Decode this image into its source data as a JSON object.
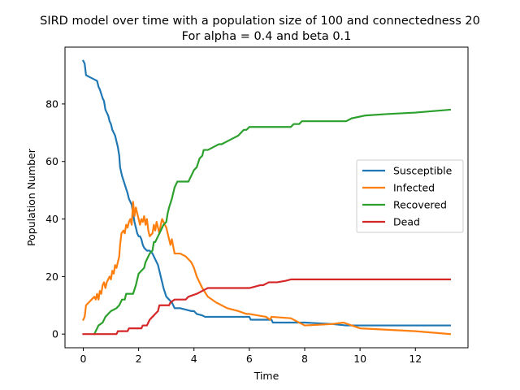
{
  "chart_data": {
    "type": "line",
    "suptitle": "SIRD model over time with a population size of 100 and connectedness 20",
    "title": "For alpha = 0.4 and beta 0.1",
    "xlabel": "Time",
    "ylabel": "Population Number",
    "xlim": [
      -0.66,
      13.9
    ],
    "ylim": [
      -4.75,
      99.75
    ],
    "xticks": [
      0,
      2,
      4,
      6,
      8,
      10,
      12
    ],
    "yticks": [
      0,
      20,
      40,
      60,
      80
    ],
    "grid": false,
    "legend_position": "center-right",
    "series": [
      {
        "name": "Susceptible",
        "color": "#1f77b4",
        "points": [
          [
            0,
            95
          ],
          [
            0.05,
            94
          ],
          [
            0.1,
            90
          ],
          [
            0.2,
            89.5
          ],
          [
            0.3,
            89
          ],
          [
            0.4,
            88.5
          ],
          [
            0.5,
            88
          ],
          [
            0.55,
            86
          ],
          [
            0.6,
            85
          ],
          [
            0.7,
            82
          ],
          [
            0.75,
            81
          ],
          [
            0.8,
            78
          ],
          [
            0.85,
            77
          ],
          [
            0.9,
            76
          ],
          [
            0.95,
            74
          ],
          [
            1.0,
            73
          ],
          [
            1.05,
            71
          ],
          [
            1.1,
            70
          ],
          [
            1.15,
            69
          ],
          [
            1.2,
            67
          ],
          [
            1.25,
            65
          ],
          [
            1.3,
            62
          ],
          [
            1.33,
            58
          ],
          [
            1.4,
            55
          ],
          [
            1.5,
            52
          ],
          [
            1.6,
            49
          ],
          [
            1.65,
            47
          ],
          [
            1.7,
            46
          ],
          [
            1.75,
            45
          ],
          [
            1.8,
            42
          ],
          [
            1.85,
            39
          ],
          [
            1.9,
            37
          ],
          [
            1.95,
            35
          ],
          [
            2.0,
            34
          ],
          [
            2.05,
            34
          ],
          [
            2.1,
            33
          ],
          [
            2.15,
            31
          ],
          [
            2.2,
            30
          ],
          [
            2.3,
            29
          ],
          [
            2.4,
            29
          ],
          [
            2.5,
            28
          ],
          [
            2.55,
            27
          ],
          [
            2.6,
            26
          ],
          [
            2.65,
            25
          ],
          [
            2.7,
            24
          ],
          [
            2.75,
            22
          ],
          [
            2.8,
            20
          ],
          [
            2.85,
            18
          ],
          [
            2.9,
            16
          ],
          [
            3.0,
            13
          ],
          [
            3.1,
            12
          ],
          [
            3.2,
            11
          ],
          [
            3.3,
            9
          ],
          [
            3.5,
            9
          ],
          [
            3.7,
            8.5
          ],
          [
            3.9,
            8
          ],
          [
            4.0,
            8
          ],
          [
            4.1,
            7
          ],
          [
            4.3,
            6.5
          ],
          [
            4.4,
            6
          ],
          [
            5.0,
            6
          ],
          [
            6.0,
            6
          ],
          [
            6.05,
            5
          ],
          [
            6.8,
            5
          ],
          [
            6.85,
            4
          ],
          [
            8.0,
            4
          ],
          [
            9.0,
            3.5
          ],
          [
            9.5,
            3
          ],
          [
            13.25,
            3
          ]
        ]
      },
      {
        "name": "Infected",
        "color": "#ff7f0e",
        "points": [
          [
            0,
            5
          ],
          [
            0.05,
            6
          ],
          [
            0.1,
            10
          ],
          [
            0.2,
            11
          ],
          [
            0.3,
            12
          ],
          [
            0.4,
            13
          ],
          [
            0.45,
            12
          ],
          [
            0.5,
            14
          ],
          [
            0.55,
            12
          ],
          [
            0.6,
            15
          ],
          [
            0.65,
            14
          ],
          [
            0.7,
            17
          ],
          [
            0.75,
            18
          ],
          [
            0.8,
            16
          ],
          [
            0.85,
            18
          ],
          [
            0.9,
            19
          ],
          [
            0.95,
            20
          ],
          [
            1.0,
            19
          ],
          [
            1.05,
            22
          ],
          [
            1.1,
            21
          ],
          [
            1.15,
            24
          ],
          [
            1.2,
            23
          ],
          [
            1.25,
            25
          ],
          [
            1.3,
            27
          ],
          [
            1.33,
            31
          ],
          [
            1.38,
            35
          ],
          [
            1.45,
            36
          ],
          [
            1.5,
            35
          ],
          [
            1.55,
            38
          ],
          [
            1.6,
            37
          ],
          [
            1.65,
            39
          ],
          [
            1.7,
            40
          ],
          [
            1.75,
            38
          ],
          [
            1.8,
            46
          ],
          [
            1.85,
            41
          ],
          [
            1.9,
            44
          ],
          [
            1.95,
            42
          ],
          [
            2.0,
            40
          ],
          [
            2.05,
            38
          ],
          [
            2.1,
            40
          ],
          [
            2.15,
            39
          ],
          [
            2.2,
            41
          ],
          [
            2.25,
            38
          ],
          [
            2.3,
            40
          ],
          [
            2.35,
            36
          ],
          [
            2.4,
            34
          ],
          [
            2.5,
            35
          ],
          [
            2.55,
            38
          ],
          [
            2.6,
            36
          ],
          [
            2.65,
            39
          ],
          [
            2.7,
            37
          ],
          [
            2.75,
            35
          ],
          [
            2.8,
            38
          ],
          [
            2.85,
            40
          ],
          [
            2.9,
            39
          ],
          [
            3.0,
            37
          ],
          [
            3.05,
            35
          ],
          [
            3.1,
            33
          ],
          [
            3.15,
            31
          ],
          [
            3.2,
            33
          ],
          [
            3.3,
            28
          ],
          [
            3.5,
            28
          ],
          [
            3.7,
            27
          ],
          [
            3.9,
            25
          ],
          [
            4.0,
            23
          ],
          [
            4.1,
            20
          ],
          [
            4.3,
            16
          ],
          [
            4.5,
            13
          ],
          [
            4.8,
            11
          ],
          [
            5.2,
            9
          ],
          [
            5.6,
            8
          ],
          [
            5.9,
            7
          ],
          [
            6.0,
            7
          ],
          [
            6.3,
            6.5
          ],
          [
            6.6,
            6
          ],
          [
            6.75,
            5
          ],
          [
            6.8,
            6
          ],
          [
            7.5,
            5.5
          ],
          [
            8.0,
            3
          ],
          [
            9.0,
            3.5
          ],
          [
            9.4,
            4
          ],
          [
            9.7,
            3
          ],
          [
            10.0,
            2
          ],
          [
            11.0,
            1.5
          ],
          [
            12.0,
            1
          ],
          [
            13.25,
            0
          ]
        ]
      },
      {
        "name": "Recovered",
        "color": "#2ca02c",
        "points": [
          [
            0.4,
            0
          ],
          [
            0.45,
            1
          ],
          [
            0.5,
            2
          ],
          [
            0.55,
            3
          ],
          [
            0.7,
            4
          ],
          [
            0.8,
            6
          ],
          [
            0.9,
            7
          ],
          [
            1.0,
            8
          ],
          [
            1.1,
            8.5
          ],
          [
            1.2,
            9
          ],
          [
            1.3,
            10
          ],
          [
            1.4,
            12
          ],
          [
            1.5,
            12
          ],
          [
            1.55,
            14
          ],
          [
            1.8,
            14
          ],
          [
            1.9,
            17
          ],
          [
            1.95,
            19
          ],
          [
            2.0,
            21
          ],
          [
            2.1,
            22
          ],
          [
            2.2,
            23
          ],
          [
            2.25,
            25
          ],
          [
            2.3,
            26
          ],
          [
            2.4,
            28
          ],
          [
            2.5,
            29
          ],
          [
            2.55,
            32
          ],
          [
            2.6,
            32
          ],
          [
            2.7,
            34
          ],
          [
            2.8,
            36
          ],
          [
            2.9,
            38
          ],
          [
            3.0,
            39
          ],
          [
            3.05,
            42
          ],
          [
            3.1,
            44
          ],
          [
            3.2,
            47
          ],
          [
            3.3,
            51
          ],
          [
            3.4,
            53
          ],
          [
            3.8,
            53
          ],
          [
            3.9,
            55
          ],
          [
            4.0,
            57
          ],
          [
            4.1,
            58
          ],
          [
            4.2,
            61
          ],
          [
            4.3,
            62
          ],
          [
            4.35,
            64
          ],
          [
            4.5,
            64
          ],
          [
            4.7,
            65
          ],
          [
            4.9,
            66
          ],
          [
            5.0,
            66
          ],
          [
            5.2,
            67
          ],
          [
            5.4,
            68
          ],
          [
            5.6,
            69
          ],
          [
            5.8,
            71
          ],
          [
            5.9,
            71
          ],
          [
            6.0,
            72
          ],
          [
            7.0,
            72
          ],
          [
            7.5,
            72
          ],
          [
            7.6,
            73
          ],
          [
            7.8,
            73
          ],
          [
            7.9,
            74
          ],
          [
            9.0,
            74
          ],
          [
            9.5,
            74
          ],
          [
            9.7,
            75
          ],
          [
            10.2,
            76
          ],
          [
            11.0,
            76.5
          ],
          [
            12.0,
            77
          ],
          [
            13.25,
            78
          ]
        ]
      },
      {
        "name": "Dead",
        "color": "#d62728",
        "points": [
          [
            0,
            0
          ],
          [
            1.2,
            0
          ],
          [
            1.25,
            1
          ],
          [
            1.6,
            1
          ],
          [
            1.65,
            2
          ],
          [
            2.1,
            2
          ],
          [
            2.15,
            3
          ],
          [
            2.3,
            3
          ],
          [
            2.35,
            4
          ],
          [
            2.4,
            5
          ],
          [
            2.5,
            6
          ],
          [
            2.6,
            7
          ],
          [
            2.7,
            8
          ],
          [
            2.75,
            10
          ],
          [
            3.1,
            10
          ],
          [
            3.15,
            11
          ],
          [
            3.3,
            12
          ],
          [
            3.7,
            12
          ],
          [
            3.8,
            13
          ],
          [
            4.1,
            14
          ],
          [
            4.3,
            15
          ],
          [
            4.5,
            16
          ],
          [
            5.9,
            16
          ],
          [
            6.0,
            16
          ],
          [
            6.2,
            16.5
          ],
          [
            6.4,
            17
          ],
          [
            6.5,
            17
          ],
          [
            6.7,
            18
          ],
          [
            7.0,
            18
          ],
          [
            7.3,
            18.5
          ],
          [
            7.5,
            19
          ],
          [
            13.25,
            19
          ]
        ]
      }
    ]
  }
}
